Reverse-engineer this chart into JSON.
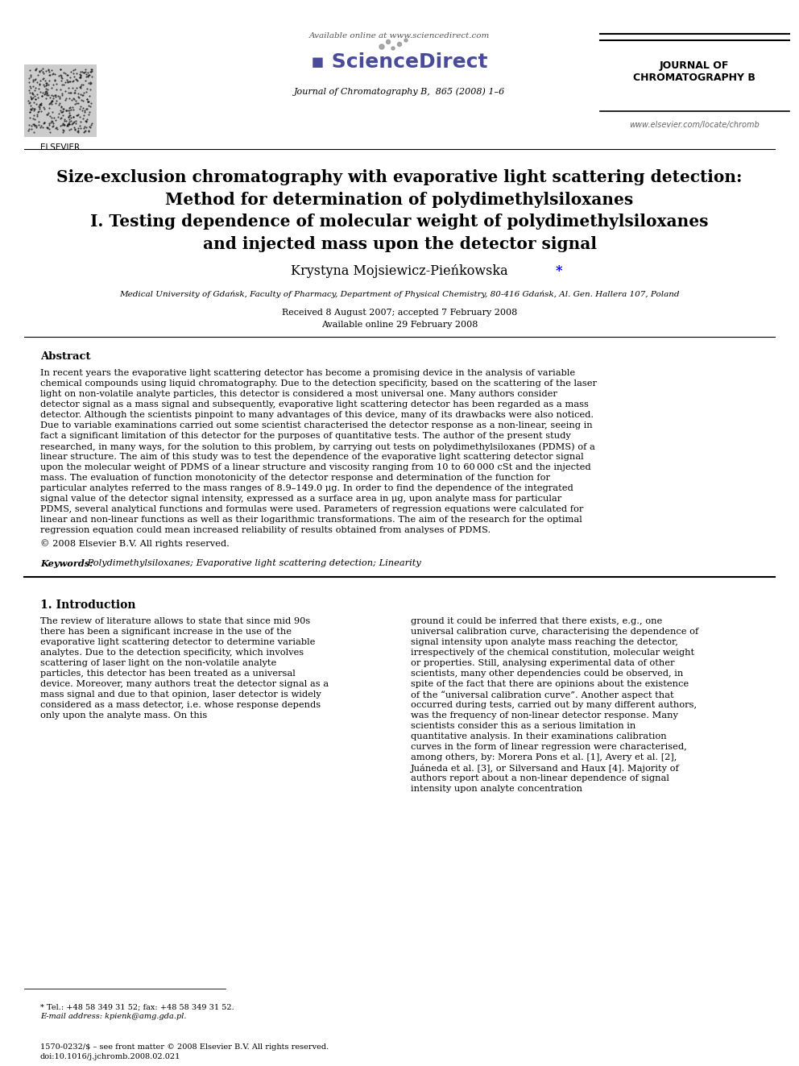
{
  "page_bg": "#ffffff",
  "header": {
    "available_online": "Available online at www.sciencedirect.com",
    "journal_line": "Journal of Chromatography B,  865 (2008) 1–6",
    "journal_name_line1": "JOURNAL OF",
    "journal_name_line2": "CHROMATOGRAPHY B",
    "website": "www.elsevier.com/locate/chromb"
  },
  "title_lines": [
    "Size-exclusion chromatography with evaporative light scattering detection:",
    "Method for determination of polydimethylsiloxanes",
    "I. Testing dependence of molecular weight of polydimethylsiloxanes",
    "and injected mass upon the detector signal"
  ],
  "author": "Krystyna Mojsiewicz-Pieńkowska",
  "affiliation": "Medical University of Gdańsk, Faculty of Pharmacy, Department of Physical Chemistry, 80-416 Gdańsk, Al. Gen. Hallera 107, Poland",
  "received": "Received 8 August 2007; accepted 7 February 2008",
  "available": "Available online 29 February 2008",
  "abstract_title": "Abstract",
  "abstract_text": "In recent years the evaporative light scattering detector has become a promising device in the analysis of variable chemical compounds using liquid chromatography. Due to the detection specificity, based on the scattering of the laser light on non-volatile analyte particles, this detector is considered a most universal one. Many authors consider detector signal as a mass signal and subsequently, evaporative light scattering detector has been regarded as a mass detector. Although the scientists pinpoint to many advantages of this device, many of its drawbacks were also noticed. Due to variable examinations carried out some scientist characterised the detector response as a non-linear, seeing in fact a significant limitation of this detector for the purposes of quantitative tests. The author of the present study researched, in many ways, for the solution to this problem, by carrying out tests on polydimethylsiloxanes (PDMS) of a linear structure. The aim of this study was to test the dependence of the evaporative light scattering detector signal upon the molecular weight of PDMS of a linear structure and viscosity ranging from 10 to 60 000 cSt and the injected mass. The evaluation of function monotonicity of the detector response and determination of the function for particular analytes referred to the mass ranges of 8.9–149.0 μg. In order to find the dependence of the integrated signal value of the detector signal intensity, expressed as a surface area in μg, upon analyte mass for particular PDMS, several analytical functions and formulas were used. Parameters of regression equations were calculated for linear and non-linear functions as well as their logarithmic transformations. The aim of the research for the optimal regression equation could mean increased reliability of results obtained from analyses of PDMS.",
  "copyright": "© 2008 Elsevier B.V. All rights reserved.",
  "keywords_label": "Keywords:",
  "keywords": " Polydimethylsiloxanes; Evaporative light scattering detection; Linearity",
  "section1_title": "1. Introduction",
  "section1_col1": "The review of literature allows to state that since mid 90s there has been a significant increase in the use of the evaporative light scattering detector to determine variable analytes. Due to the detection specificity, which involves scattering of laser light on the non-volatile analyte particles, this detector has been treated as a universal device. Moreover, many authors treat the detector signal as a mass signal and due to that opinion, laser detector is widely considered as a mass detector, i.e. whose response depends only upon the analyte mass. On this",
  "section1_col2": "ground it could be inferred that there exists, e.g., one universal calibration curve, characterising the dependence of signal intensity upon analyte mass reaching the detector, irrespectively of the chemical constitution, molecular weight or properties. Still, analysing experimental data of other scientists, many other dependencies could be observed, in spite of the fact that there are opinions about the existence of the “universal calibration curve”. Another aspect that occurred during tests, carried out by many different authors, was the frequency of non-linear detector response. Many scientists consider this as a serious limitation in quantitative analysis. In their examinations calibration curves in the form of linear regression were characterised, among others, by: Morera Pons et al. [1], Avery et al. [2], Juáneda et al. [3], or Silversand and Haux [4]. Majority of authors report about a non-linear dependence of signal intensity upon analyte concentration",
  "footnote_star": "* Tel.: +48 58 349 31 52; fax: +48 58 349 31 52.",
  "footnote_email": "E-mail address: kpienk@amg.gda.pl.",
  "footer_issn": "1570-0232/$ – see front matter © 2008 Elsevier B.V. All rights reserved.",
  "footer_doi": "doi:10.1016/j.jchromb.2008.02.021"
}
